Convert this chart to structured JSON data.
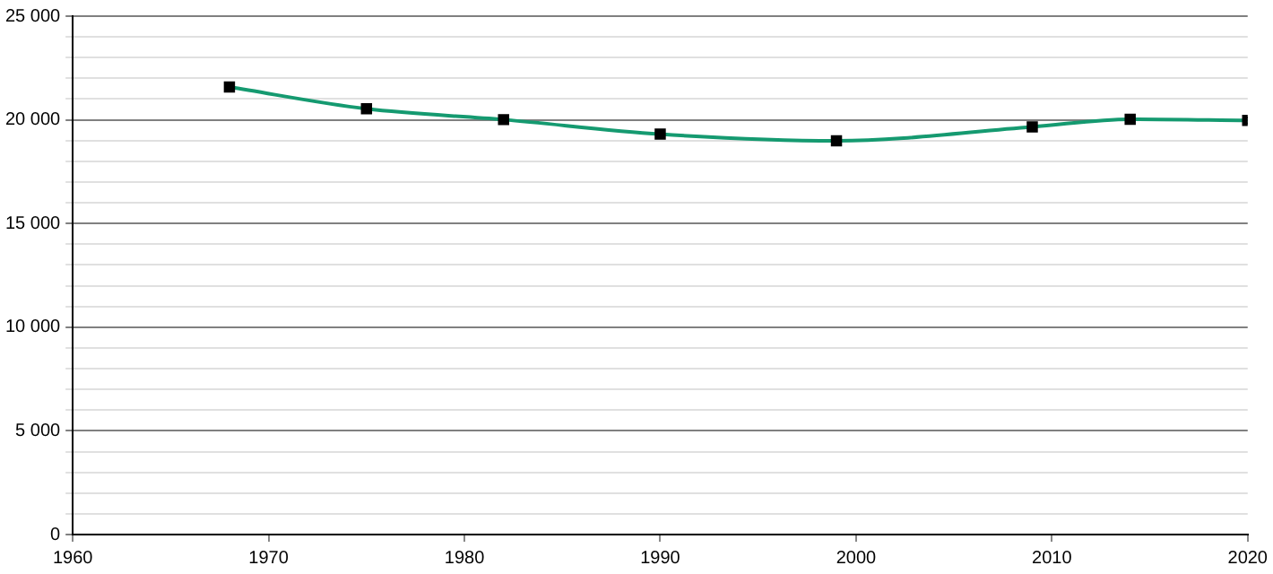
{
  "chart_data": {
    "type": "line",
    "x": [
      1968,
      1975,
      1982,
      1990,
      1999,
      2009,
      2014,
      2020
    ],
    "series": [
      {
        "color": "#159a70",
        "values": [
          21580,
          20530,
          20010,
          19310,
          18990,
          19660,
          20030,
          19970
        ]
      }
    ],
    "xlim": [
      1960,
      2020
    ],
    "xticks": [
      1960,
      1970,
      1980,
      1990,
      2000,
      2010,
      2020
    ],
    "ylim": [
      0,
      25000
    ],
    "yticks": [
      {
        "value": 0,
        "label": "0"
      },
      {
        "value": 1000,
        "label": null
      },
      {
        "value": 2000,
        "label": null
      },
      {
        "value": 3000,
        "label": null
      },
      {
        "value": 4000,
        "label": null
      },
      {
        "value": 5000,
        "label": "5 000"
      },
      {
        "value": 6000,
        "label": null
      },
      {
        "value": 7000,
        "label": null
      },
      {
        "value": 8000,
        "label": null
      },
      {
        "value": 9000,
        "label": null
      },
      {
        "value": 10000,
        "label": "10 000"
      },
      {
        "value": 11000,
        "label": null
      },
      {
        "value": 12000,
        "label": null
      },
      {
        "value": 13000,
        "label": null
      },
      {
        "value": 14000,
        "label": null
      },
      {
        "value": 15000,
        "label": "15 000"
      },
      {
        "value": 16000,
        "label": null
      },
      {
        "value": 17000,
        "label": null
      },
      {
        "value": 18000,
        "label": null
      },
      {
        "value": 19000,
        "label": null
      },
      {
        "value": 20000,
        "label": "20 000"
      },
      {
        "value": 21000,
        "label": null
      },
      {
        "value": 22000,
        "label": null
      },
      {
        "value": 23000,
        "label": null
      },
      {
        "value": 24000,
        "label": null
      },
      {
        "value": 25000,
        "label": "25 000"
      }
    ],
    "grid": "y",
    "legend": false,
    "marker": "square",
    "line_style": "solid"
  }
}
